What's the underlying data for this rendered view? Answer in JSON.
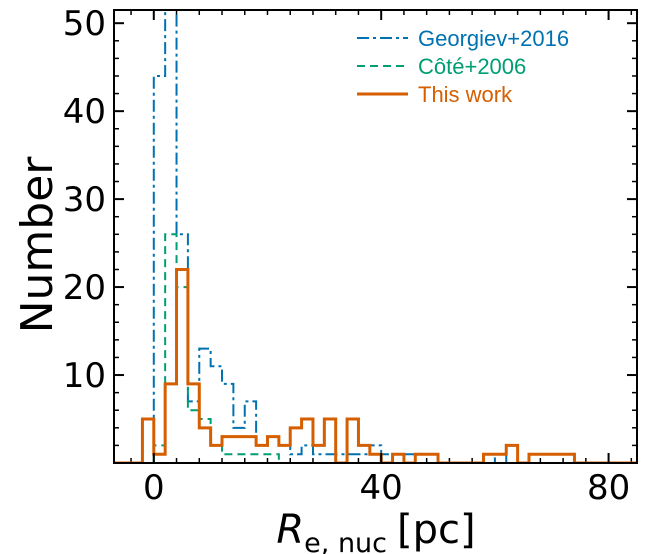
{
  "chart_data": {
    "type": "histogram",
    "xlabel_main": "R",
    "xlabel_sub": "e, nuc",
    "xlabel_unit": "[pc]",
    "ylabel": "Number",
    "xlim": [
      -7,
      85
    ],
    "ylim": [
      0,
      51.5
    ],
    "xticks": [
      0,
      40,
      80
    ],
    "yticks": [
      10,
      20,
      30,
      40,
      50
    ],
    "x_minor_step": 4,
    "y_minor_step": 2,
    "legend_position": "top-right",
    "series": [
      {
        "name": "Georgiev+2016",
        "color": "#0072B2",
        "dash": "dashdot",
        "edges": [
          -2,
          0,
          2,
          4,
          6,
          8,
          10,
          12,
          14,
          16,
          18,
          20,
          22,
          24,
          26,
          28,
          30,
          32,
          34,
          36,
          38,
          40,
          42,
          44,
          46,
          48,
          50,
          52,
          54,
          56,
          58,
          60,
          62,
          64
        ],
        "counts": [
          0,
          44,
          52,
          26,
          7,
          13,
          11,
          9,
          4,
          7,
          2,
          3,
          2,
          1,
          2,
          1,
          1,
          1,
          1,
          1,
          2,
          1,
          0,
          1,
          0,
          0,
          0,
          0,
          0,
          0,
          0,
          1,
          0
        ]
      },
      {
        "name": "Côté+2006",
        "color": "#009E73",
        "dash": "dashed",
        "edges": [
          0,
          2,
          4,
          6,
          8,
          10,
          12,
          14,
          16,
          18,
          20,
          22
        ],
        "counts": [
          2,
          26,
          20,
          6,
          5,
          2,
          1,
          1,
          1,
          1,
          1
        ]
      },
      {
        "name": "This work",
        "color": "#D55E00",
        "dash": "solid",
        "edges": [
          -2,
          0,
          2,
          4,
          6,
          8,
          10,
          12,
          14,
          16,
          18,
          20,
          22,
          24,
          26,
          28,
          30,
          32,
          34,
          36,
          38,
          40,
          42,
          44,
          46,
          48,
          50,
          52,
          54,
          56,
          58,
          60,
          62,
          64,
          66,
          68,
          70,
          72,
          74
        ],
        "counts": [
          5,
          1,
          9,
          22,
          9,
          4,
          2,
          3,
          3,
          3,
          2,
          3,
          2,
          4,
          5,
          2,
          5,
          0,
          5,
          2,
          1,
          0,
          1,
          0,
          1,
          1,
          0,
          0,
          0,
          0,
          1,
          1,
          2,
          0,
          1,
          1,
          1,
          1
        ]
      }
    ]
  }
}
